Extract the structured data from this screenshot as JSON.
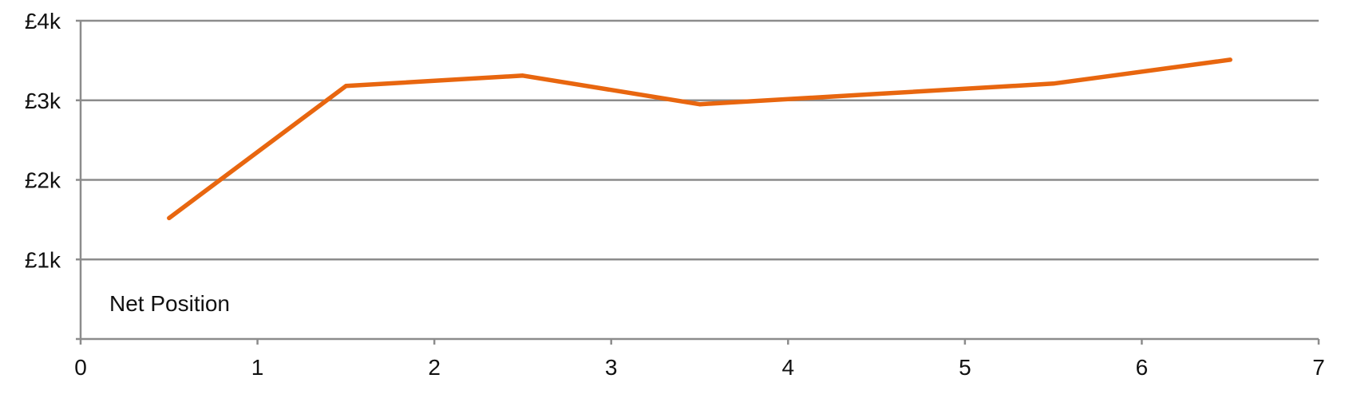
{
  "chart_data": {
    "type": "line",
    "title": "",
    "xlabel": "",
    "ylabel": "",
    "xlim": [
      0,
      7
    ],
    "ylim": [
      0,
      4000
    ],
    "x_ticks": [
      "0",
      "1",
      "2",
      "3",
      "4",
      "5",
      "6",
      "7"
    ],
    "y_ticks": [
      {
        "value": 1000,
        "label": "£1k"
      },
      {
        "value": 2000,
        "label": "£2k"
      },
      {
        "value": 3000,
        "label": "£3k"
      },
      {
        "value": 4000,
        "label": "£4k"
      }
    ],
    "grid": true,
    "series": [
      {
        "name": "Net Position",
        "color": "#e8660f",
        "x": [
          0.5,
          1.5,
          2.5,
          3.5,
          4.5,
          5.5,
          6.5
        ],
        "values": [
          1520,
          3180,
          3310,
          2950,
          3080,
          3210,
          3510
        ]
      }
    ]
  }
}
